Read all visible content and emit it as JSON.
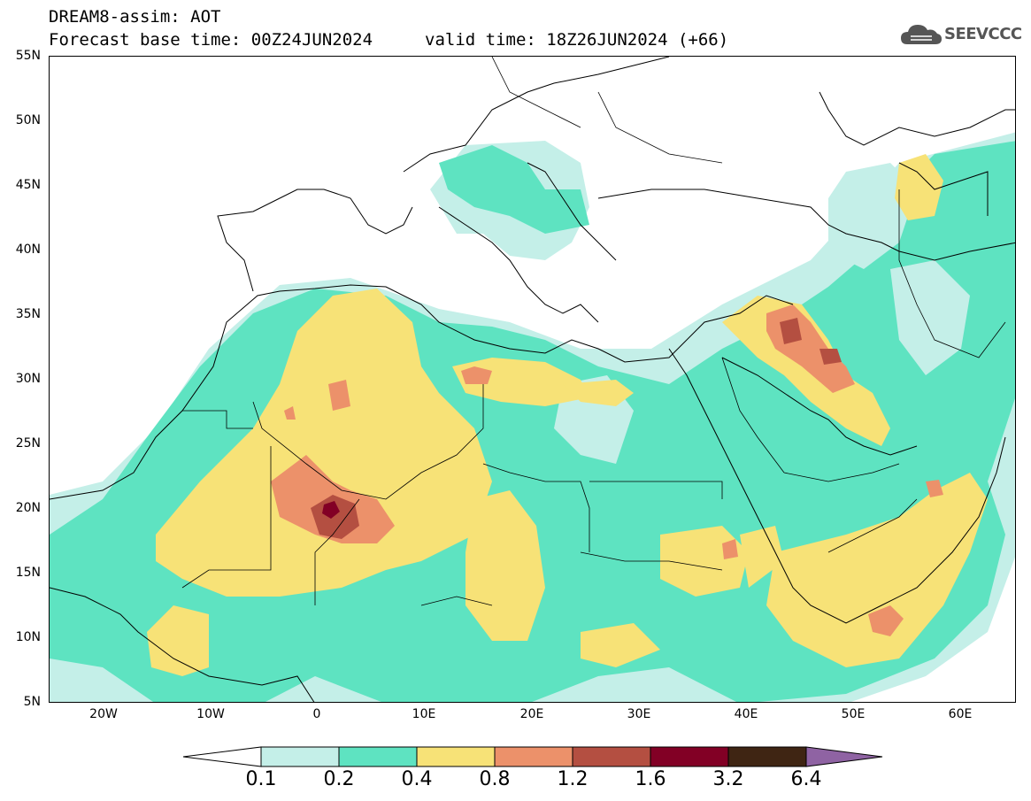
{
  "header": {
    "title_line1": "DREAM8-assim: AOT",
    "title_line2": "Forecast base time: 00Z24JUN2024",
    "valid_time": "valid time: 18Z26JUN2024 (+66)",
    "logo_text": "SEEVCCC"
  },
  "map": {
    "lat_labels": [
      "55N",
      "50N",
      "45N",
      "40N",
      "35N",
      "30N",
      "25N",
      "20N",
      "15N",
      "10N",
      "5N"
    ],
    "lon_labels": [
      "20W",
      "10W",
      "0",
      "10E",
      "20E",
      "30E",
      "40E",
      "50E",
      "60E"
    ],
    "lat_range": [
      5,
      55
    ],
    "lon_range": [
      -25,
      65
    ]
  },
  "legend": {
    "levels": [
      "0.1",
      "0.2",
      "0.4",
      "0.8",
      "1.2",
      "1.6",
      "3.2",
      "6.4"
    ],
    "colors": [
      "#c4efe8",
      "#5ee3c1",
      "#f7e277",
      "#ec916a",
      "#b44f41",
      "#820025",
      "#3f2513",
      "#8f63a3"
    ]
  },
  "colors": {
    "aot_0_1": "#c4efe8",
    "aot_0_2": "#5ee3c1",
    "aot_0_4": "#f7e277",
    "aot_0_8": "#ec916a",
    "aot_1_2": "#b44f41",
    "aot_1_6": "#820025",
    "aot_3_2": "#3f2513",
    "aot_6_4": "#8f63a3"
  }
}
